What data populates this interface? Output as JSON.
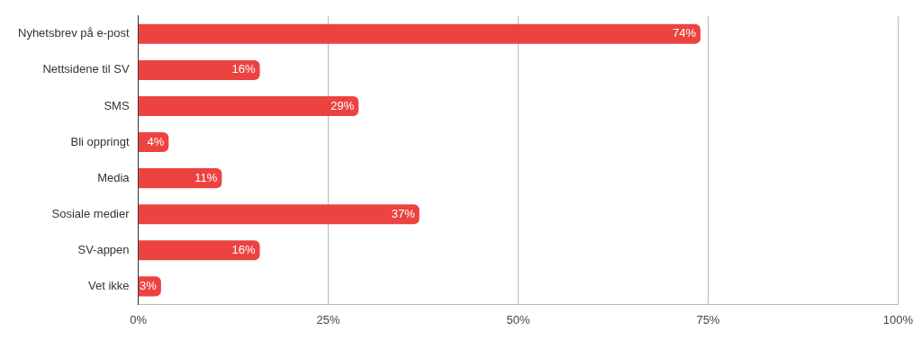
{
  "chart_data": {
    "type": "bar",
    "orientation": "horizontal",
    "categories": [
      "Nyhetsbrev på e-post",
      "Nettsidene til SV",
      "SMS",
      "Bli oppringt",
      "Media",
      "Sosiale medier",
      "SV-appen",
      "Vet ikke"
    ],
    "values": [
      74,
      16,
      29,
      4,
      11,
      37,
      16,
      3
    ],
    "value_labels": [
      "74%",
      "16%",
      "29%",
      "4%",
      "11%",
      "37%",
      "16%",
      "3%"
    ],
    "color": "#ec4341",
    "xlim": [
      0,
      100
    ],
    "xticks": [
      {
        "value": 0,
        "label": "0%"
      },
      {
        "value": 25,
        "label": "25%"
      },
      {
        "value": 50,
        "label": "50%"
      },
      {
        "value": 75,
        "label": "75%"
      },
      {
        "value": 100,
        "label": "100%"
      }
    ],
    "grid": true,
    "data_labels": true
  }
}
